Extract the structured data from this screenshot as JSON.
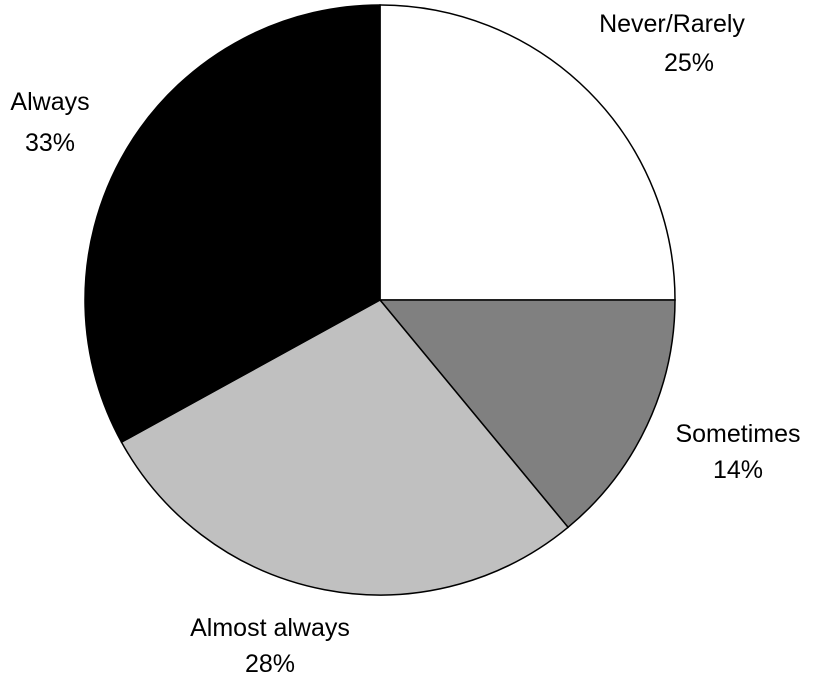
{
  "chart_data": {
    "type": "pie",
    "slices": [
      {
        "label": "Never/Rarely",
        "value": 25,
        "value_text": "25%",
        "color": "#ffffff"
      },
      {
        "label": "Sometimes",
        "value": 14,
        "value_text": "14%",
        "color": "#808080"
      },
      {
        "label": "Almost always",
        "value": 28,
        "value_text": "28%",
        "color": "#c0c0c0"
      },
      {
        "label": "Always",
        "value": 33,
        "value_text": "33%",
        "color": "#000000"
      }
    ],
    "start_angle": "12 o'clock",
    "direction": "clockwise",
    "legend": "none",
    "data_labels": "outside"
  }
}
